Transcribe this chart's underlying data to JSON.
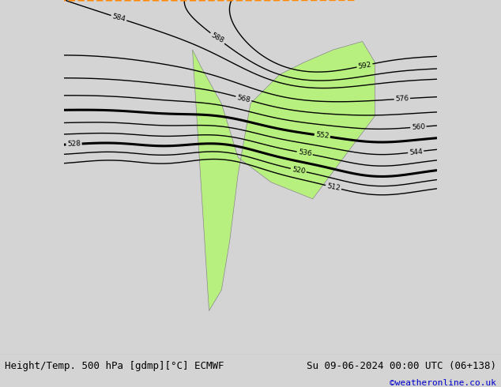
{
  "title_left": "Height/Temp. 500 hPa [gdmp][°C] ECMWF",
  "title_right": "Su 09-06-2024 00:00 UTC (06+138)",
  "credit": "©weatheronline.co.uk",
  "bg_color": "#d4d4d4",
  "land_color": "#b8f080",
  "ocean_color": "#d4d4d4",
  "border_color": "#888888",
  "contour_color_black": "#000000",
  "contour_color_red": "#ff0000",
  "contour_color_orange": "#ff8800",
  "contour_color_green": "#88cc00",
  "contour_color_cyan": "#00cccc",
  "title_fontsize": 9,
  "credit_fontsize": 8,
  "credit_color": "#0000cc",
  "lon_min": -110,
  "lon_max": -20,
  "lat_min": -65,
  "lat_max": 20
}
